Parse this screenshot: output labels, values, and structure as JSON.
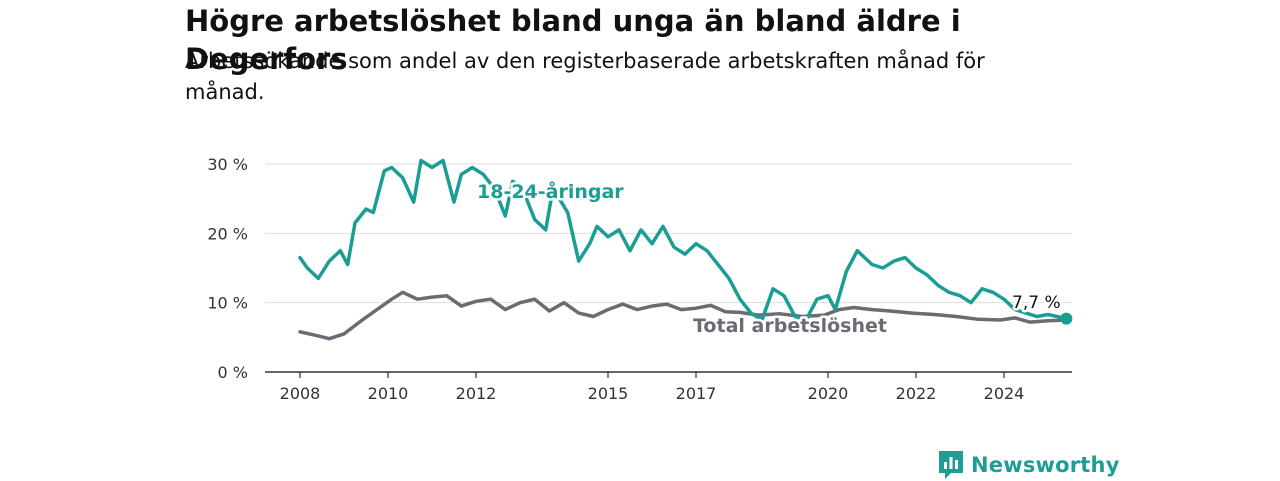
{
  "title": "Högre arbetslöshet bland unga än bland äldre i Degerfors",
  "subtitle": "Arbetssökande som andel av den registerbaserade arbetskraften månad för månad.",
  "brand": {
    "name": "Newsworthy"
  },
  "colors": {
    "youth": "#1a9e94",
    "total": "#6b6b73",
    "grid": "#dddddd",
    "axis": "#333333"
  },
  "chart_data": {
    "type": "line",
    "title": "Högre arbetslöshet bland unga än bland äldre i Degerfors",
    "subtitle": "Arbetssökande som andel av den registerbaserade arbetskraften månad för månad.",
    "x_range": [
      "2008-01",
      "2025-08"
    ],
    "x_ticks": [
      "2008",
      "2010",
      "2012",
      "2015",
      "2017",
      "2020",
      "2022",
      "2024"
    ],
    "ylim": [
      0,
      30
    ],
    "y_ticks": [
      0,
      10,
      20,
      30
    ],
    "y_tick_labels": [
      "0 %",
      "10 %",
      "20 %",
      "30 %"
    ],
    "grid": "horizontal",
    "series": [
      {
        "name": "18-24-åringar",
        "color": "#1a9e94",
        "points": [
          [
            "2008-01",
            16.5
          ],
          [
            "2008-03",
            15.0
          ],
          [
            "2008-06",
            13.5
          ],
          [
            "2008-09",
            16.0
          ],
          [
            "2008-12",
            17.5
          ],
          [
            "2009-02",
            15.5
          ],
          [
            "2009-04",
            21.5
          ],
          [
            "2009-07",
            23.5
          ],
          [
            "2009-09",
            23.0
          ],
          [
            "2009-12",
            29.0
          ],
          [
            "2010-02",
            29.5
          ],
          [
            "2010-05",
            28.0
          ],
          [
            "2010-08",
            24.5
          ],
          [
            "2010-10",
            30.5
          ],
          [
            "2011-01",
            29.5
          ],
          [
            "2011-04",
            30.5
          ],
          [
            "2011-07",
            24.5
          ],
          [
            "2011-09",
            28.5
          ],
          [
            "2011-12",
            29.5
          ],
          [
            "2012-03",
            28.5
          ],
          [
            "2012-06",
            26.5
          ],
          [
            "2012-09",
            22.5
          ],
          [
            "2012-11",
            27.5
          ],
          [
            "2013-02",
            26.0
          ],
          [
            "2013-05",
            22.0
          ],
          [
            "2013-08",
            20.5
          ],
          [
            "2013-10",
            26.5
          ],
          [
            "2014-02",
            23.0
          ],
          [
            "2014-05",
            16.0
          ],
          [
            "2014-08",
            18.5
          ],
          [
            "2014-10",
            21.0
          ],
          [
            "2015-01",
            19.5
          ],
          [
            "2015-04",
            20.5
          ],
          [
            "2015-07",
            17.5
          ],
          [
            "2015-10",
            20.5
          ],
          [
            "2016-01",
            18.5
          ],
          [
            "2016-04",
            21.0
          ],
          [
            "2016-07",
            18.0
          ],
          [
            "2016-10",
            17.0
          ],
          [
            "2017-01",
            18.5
          ],
          [
            "2017-04",
            17.5
          ],
          [
            "2017-07",
            15.5
          ],
          [
            "2017-10",
            13.5
          ],
          [
            "2018-01",
            10.5
          ],
          [
            "2018-04",
            8.5
          ],
          [
            "2018-07",
            7.5
          ],
          [
            "2018-10",
            12.0
          ],
          [
            "2019-01",
            11.0
          ],
          [
            "2019-04",
            8.0
          ],
          [
            "2019-07",
            7.5
          ],
          [
            "2019-10",
            10.5
          ],
          [
            "2020-01",
            11.0
          ],
          [
            "2020-03",
            9.0
          ],
          [
            "2020-06",
            14.5
          ],
          [
            "2020-09",
            17.5
          ],
          [
            "2021-01",
            15.5
          ],
          [
            "2021-04",
            15.0
          ],
          [
            "2021-07",
            16.0
          ],
          [
            "2021-10",
            16.5
          ],
          [
            "2022-01",
            15.0
          ],
          [
            "2022-04",
            14.0
          ],
          [
            "2022-07",
            12.5
          ],
          [
            "2022-10",
            11.5
          ],
          [
            "2023-01",
            11.0
          ],
          [
            "2023-04",
            10.0
          ],
          [
            "2023-07",
            12.0
          ],
          [
            "2023-10",
            11.5
          ],
          [
            "2024-01",
            10.5
          ],
          [
            "2024-04",
            9.0
          ],
          [
            "2024-07",
            8.5
          ],
          [
            "2024-10",
            8.0
          ],
          [
            "2025-01",
            8.3
          ],
          [
            "2025-06",
            7.7
          ]
        ]
      },
      {
        "name": "Total arbetslöshet",
        "color": "#6b6b73",
        "points": [
          [
            "2008-01",
            5.8
          ],
          [
            "2008-06",
            5.2
          ],
          [
            "2008-09",
            4.8
          ],
          [
            "2009-01",
            5.5
          ],
          [
            "2009-06",
            7.5
          ],
          [
            "2009-10",
            9.0
          ],
          [
            "2010-02",
            10.5
          ],
          [
            "2010-05",
            11.5
          ],
          [
            "2010-09",
            10.5
          ],
          [
            "2011-01",
            10.8
          ],
          [
            "2011-05",
            11.0
          ],
          [
            "2011-09",
            9.5
          ],
          [
            "2012-01",
            10.2
          ],
          [
            "2012-05",
            10.5
          ],
          [
            "2012-09",
            9.0
          ],
          [
            "2013-01",
            10.0
          ],
          [
            "2013-05",
            10.5
          ],
          [
            "2013-09",
            8.8
          ],
          [
            "2014-01",
            10.0
          ],
          [
            "2014-05",
            8.5
          ],
          [
            "2014-09",
            8.0
          ],
          [
            "2015-01",
            9.0
          ],
          [
            "2015-05",
            9.8
          ],
          [
            "2015-09",
            9.0
          ],
          [
            "2016-01",
            9.5
          ],
          [
            "2016-05",
            9.8
          ],
          [
            "2016-09",
            9.0
          ],
          [
            "2017-01",
            9.2
          ],
          [
            "2017-05",
            9.6
          ],
          [
            "2017-09",
            8.7
          ],
          [
            "2018-01",
            8.6
          ],
          [
            "2018-06",
            8.2
          ],
          [
            "2018-12",
            8.4
          ],
          [
            "2019-06",
            8.0
          ],
          [
            "2019-12",
            8.2
          ],
          [
            "2020-04",
            9.0
          ],
          [
            "2020-08",
            9.3
          ],
          [
            "2021-01",
            9.0
          ],
          [
            "2021-06",
            8.8
          ],
          [
            "2021-12",
            8.5
          ],
          [
            "2022-06",
            8.3
          ],
          [
            "2022-12",
            8.0
          ],
          [
            "2023-06",
            7.6
          ],
          [
            "2023-12",
            7.5
          ],
          [
            "2024-04",
            7.8
          ],
          [
            "2024-08",
            7.2
          ],
          [
            "2025-01",
            7.4
          ],
          [
            "2025-06",
            7.5
          ]
        ]
      }
    ],
    "annotations": [
      {
        "text": "18-24-åringar",
        "series": "18-24-åringar"
      },
      {
        "text": "Total arbetslöshet",
        "series": "Total arbetslöshet"
      },
      {
        "text": "7,7 %",
        "series": "18-24-åringar",
        "note": "last value"
      }
    ]
  }
}
